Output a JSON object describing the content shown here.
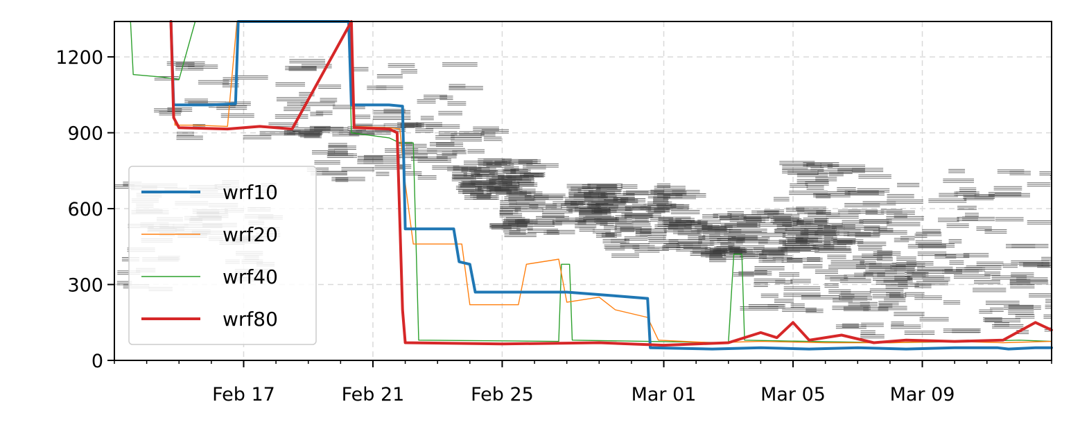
{
  "chart_data": {
    "type": "line",
    "title": "",
    "xlabel": "",
    "ylabel": "",
    "x_range": [
      "2024-02-13",
      "2024-03-13"
    ],
    "ylim": [
      0,
      1340
    ],
    "grid": true,
    "legend_position": "center-left",
    "x_ticks": [
      {
        "date": "2024-02-17",
        "label": "Feb 17"
      },
      {
        "date": "2024-02-21",
        "label": "Feb 21"
      },
      {
        "date": "2024-02-25",
        "label": "Feb 25"
      },
      {
        "date": "2024-03-01",
        "label": "Mar 01"
      },
      {
        "date": "2024-03-05",
        "label": "Mar 05"
      },
      {
        "date": "2024-03-09",
        "label": "Mar 09"
      }
    ],
    "y_ticks": [
      {
        "value": 0,
        "label": "0"
      },
      {
        "value": 300,
        "label": "300"
      },
      {
        "value": 600,
        "label": "600"
      },
      {
        "value": 900,
        "label": "900"
      },
      {
        "value": 1200,
        "label": "1200"
      }
    ],
    "series": [
      {
        "name": "wrf10",
        "color": "#1f77b4",
        "width": "thick",
        "points": [
          [
            "2024-02-14 18:00",
            1340
          ],
          [
            "2024-02-14 20:00",
            1010
          ],
          [
            "2024-02-16 00:00",
            1010
          ],
          [
            "2024-02-16 18:00",
            1015
          ],
          [
            "2024-02-16 20:00",
            1340
          ],
          [
            "2024-02-20 06:00",
            1340
          ],
          [
            "2024-02-20 08:00",
            1010
          ],
          [
            "2024-02-21 12:00",
            1010
          ],
          [
            "2024-02-21 22:00",
            1005
          ],
          [
            "2024-02-22 00:00",
            520
          ],
          [
            "2024-02-23 12:00",
            520
          ],
          [
            "2024-02-23 16:00",
            390
          ],
          [
            "2024-02-24 00:00",
            380
          ],
          [
            "2024-02-24 04:00",
            270
          ],
          [
            "2024-02-27 00:00",
            270
          ],
          [
            "2024-02-28 12:00",
            255
          ],
          [
            "2024-02-29 12:00",
            245
          ],
          [
            "2024-02-29 14:00",
            50
          ],
          [
            "2024-03-02 12:00",
            45
          ],
          [
            "2024-03-04 00:00",
            50
          ],
          [
            "2024-03-05 12:00",
            45
          ],
          [
            "2024-03-07 00:00",
            50
          ],
          [
            "2024-03-08 12:00",
            45
          ],
          [
            "2024-03-10 00:00",
            50
          ],
          [
            "2024-03-10 12:00",
            50
          ],
          [
            "2024-03-11 08:00",
            50
          ],
          [
            "2024-03-11 16:00",
            45
          ],
          [
            "2024-03-12 12:00",
            50
          ],
          [
            "2024-03-13 00:00",
            50
          ]
        ]
      },
      {
        "name": "wrf20",
        "color": "#ff7f0e",
        "width": "thin",
        "points": [
          [
            "2024-02-14 18:00",
            1340
          ],
          [
            "2024-02-14 21:00",
            930
          ],
          [
            "2024-02-15 12:00",
            930
          ],
          [
            "2024-02-16 12:00",
            925
          ],
          [
            "2024-02-16 19:00",
            1340
          ],
          [
            "2024-02-20 08:00",
            1340
          ],
          [
            "2024-02-20 10:00",
            925
          ],
          [
            "2024-02-21 12:00",
            920
          ],
          [
            "2024-02-21 20:00",
            915
          ],
          [
            "2024-02-22 00:00",
            700
          ],
          [
            "2024-02-22 06:00",
            460
          ],
          [
            "2024-02-23 18:00",
            460
          ],
          [
            "2024-02-24 00:00",
            220
          ],
          [
            "2024-02-25 12:00",
            220
          ],
          [
            "2024-02-25 18:00",
            380
          ],
          [
            "2024-02-26 18:00",
            400
          ],
          [
            "2024-02-27 00:00",
            230
          ],
          [
            "2024-02-28 00:00",
            250
          ],
          [
            "2024-02-28 12:00",
            200
          ],
          [
            "2024-02-29 12:00",
            170
          ],
          [
            "2024-02-29 20:00",
            80
          ],
          [
            "2024-03-02 12:00",
            70
          ],
          [
            "2024-03-04 00:00",
            75
          ],
          [
            "2024-03-06 00:00",
            70
          ],
          [
            "2024-03-08 00:00",
            70
          ],
          [
            "2024-03-10 00:00",
            75
          ],
          [
            "2024-03-11 12:00",
            70
          ],
          [
            "2024-03-13 00:00",
            75
          ]
        ]
      },
      {
        "name": "wrf40",
        "color": "#2ca02c",
        "width": "thin",
        "points": [
          [
            "2024-02-13 12:00",
            1340
          ],
          [
            "2024-02-13 14:00",
            1130
          ],
          [
            "2024-02-14 12:00",
            1120
          ],
          [
            "2024-02-15 00:00",
            1110
          ],
          [
            "2024-02-15 12:00",
            1340
          ],
          [
            "2024-02-20 06:00",
            1340
          ],
          [
            "2024-02-20 08:00",
            900
          ],
          [
            "2024-02-21 12:00",
            880
          ],
          [
            "2024-02-21 20:00",
            860
          ],
          [
            "2024-02-22 00:00",
            860
          ],
          [
            "2024-02-22 06:00",
            860
          ],
          [
            "2024-02-22 10:00",
            80
          ],
          [
            "2024-02-26 18:00",
            75
          ],
          [
            "2024-02-26 20:00",
            380
          ],
          [
            "2024-02-27 02:00",
            380
          ],
          [
            "2024-02-27 04:00",
            80
          ],
          [
            "2024-02-29 12:00",
            75
          ],
          [
            "2024-03-03 00:00",
            70
          ],
          [
            "2024-03-03 04:00",
            420
          ],
          [
            "2024-03-03 10:00",
            420
          ],
          [
            "2024-03-03 12:00",
            80
          ],
          [
            "2024-03-05 12:00",
            75
          ],
          [
            "2024-03-08 00:00",
            70
          ],
          [
            "2024-03-10 12:00",
            75
          ],
          [
            "2024-03-12 00:00",
            80
          ],
          [
            "2024-03-13 00:00",
            75
          ]
        ]
      },
      {
        "name": "wrf80",
        "color": "#d62728",
        "width": "thick",
        "points": [
          [
            "2024-02-14 18:00",
            1340
          ],
          [
            "2024-02-14 20:00",
            960
          ],
          [
            "2024-02-15 00:00",
            920
          ],
          [
            "2024-02-16 12:00",
            915
          ],
          [
            "2024-02-17 12:00",
            925
          ],
          [
            "2024-02-18 00:00",
            920
          ],
          [
            "2024-02-18 12:00",
            915
          ],
          [
            "2024-02-20 08:00",
            1340
          ],
          [
            "2024-02-20 10:00",
            920
          ],
          [
            "2024-02-21 12:00",
            915
          ],
          [
            "2024-02-21 18:00",
            900
          ],
          [
            "2024-02-21 22:00",
            200
          ],
          [
            "2024-02-22 00:00",
            70
          ],
          [
            "2024-02-25 00:00",
            65
          ],
          [
            "2024-02-28 00:00",
            70
          ],
          [
            "2024-03-01 00:00",
            60
          ],
          [
            "2024-03-03 00:00",
            70
          ],
          [
            "2024-03-04 00:00",
            110
          ],
          [
            "2024-03-04 12:00",
            90
          ],
          [
            "2024-03-05 00:00",
            150
          ],
          [
            "2024-03-05 12:00",
            80
          ],
          [
            "2024-03-06 12:00",
            100
          ],
          [
            "2024-03-07 12:00",
            70
          ],
          [
            "2024-03-08 12:00",
            80
          ],
          [
            "2024-03-10 00:00",
            75
          ],
          [
            "2024-03-11 12:00",
            80
          ],
          [
            "2024-03-12 12:00",
            150
          ],
          [
            "2024-03-13 00:00",
            120
          ]
        ]
      }
    ]
  }
}
